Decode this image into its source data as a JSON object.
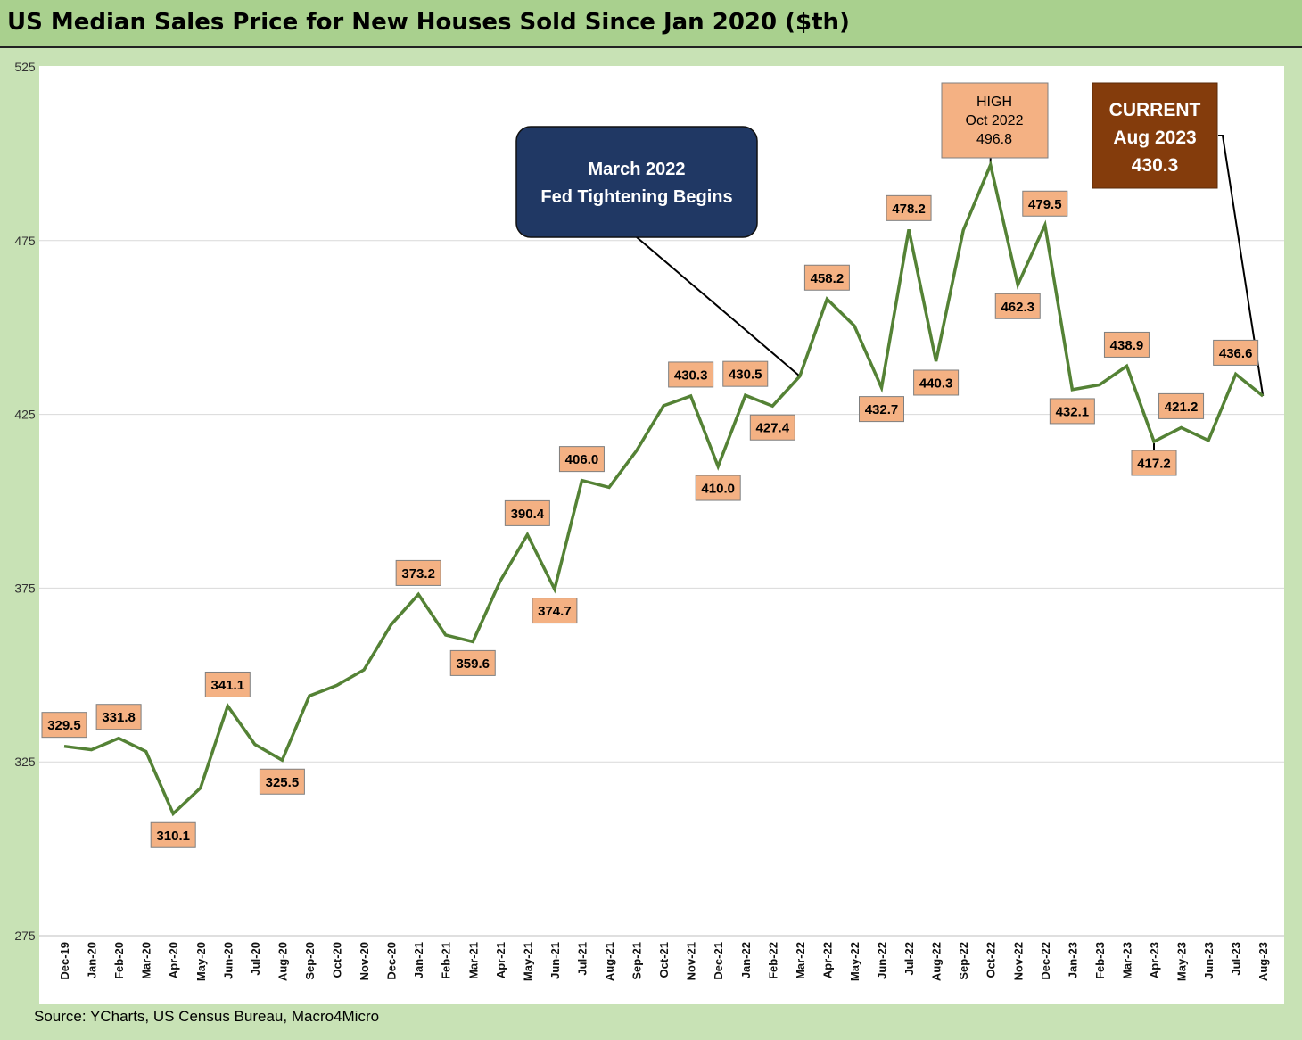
{
  "title": "US Median Sales Price for New Houses Sold Since Jan 2020 ($th)",
  "source": "Source: YCharts, US Census Bureau, Macro4Micro",
  "colors": {
    "line": "#548235",
    "label_fill": "#f4b183",
    "callout_fed": "#203864",
    "callout_current": "#843c0c",
    "frame": "#c8e2b5",
    "title_bar": "#a9d08e"
  },
  "chart_data": {
    "type": "line",
    "title": "US Median Sales Price for New Houses Sold Since Jan 2020 ($th)",
    "xlabel": "",
    "ylabel": "",
    "ylim": [
      275,
      525
    ],
    "yticks": [
      275,
      325,
      375,
      425,
      475,
      525
    ],
    "grid": true,
    "categories": [
      "Dec-19",
      "Jan-20",
      "Feb-20",
      "Mar-20",
      "Apr-20",
      "May-20",
      "Jun-20",
      "Jul-20",
      "Aug-20",
      "Sep-20",
      "Oct-20",
      "Nov-20",
      "Dec-20",
      "Jan-21",
      "Feb-21",
      "Mar-21",
      "Apr-21",
      "May-21",
      "Jun-21",
      "Jul-21",
      "Aug-21",
      "Sep-21",
      "Oct-21",
      "Nov-21",
      "Dec-21",
      "Jan-22",
      "Feb-22",
      "Mar-22",
      "Apr-22",
      "May-22",
      "Jun-22",
      "Jul-22",
      "Aug-22",
      "Sep-22",
      "Oct-22",
      "Nov-22",
      "Dec-22",
      "Jan-23",
      "Feb-23",
      "Mar-23",
      "Apr-23",
      "May-23",
      "Jun-23",
      "Jul-23",
      "Aug-23"
    ],
    "series": [
      {
        "values": [
          329.5,
          328.5,
          331.8,
          328.0,
          310.1,
          317.5,
          341.1,
          330.0,
          325.5,
          344.0,
          347.0,
          351.5,
          364.5,
          373.2,
          361.5,
          359.6,
          377.0,
          390.4,
          374.7,
          406.0,
          404.0,
          414.5,
          427.5,
          430.3,
          410.0,
          430.5,
          427.4,
          436.0,
          458.2,
          450.5,
          432.7,
          478.2,
          440.3,
          478.0,
          496.8,
          462.3,
          479.5,
          432.1,
          433.5,
          438.9,
          417.2,
          421.2,
          417.5,
          436.6,
          430.3
        ]
      }
    ],
    "data_labels": [
      {
        "index": 0,
        "text": "329.5",
        "pos": "above"
      },
      {
        "index": 2,
        "text": "331.8",
        "pos": "above"
      },
      {
        "index": 4,
        "text": "310.1",
        "pos": "below"
      },
      {
        "index": 6,
        "text": "341.1",
        "pos": "above"
      },
      {
        "index": 8,
        "text": "325.5",
        "pos": "below"
      },
      {
        "index": 13,
        "text": "373.2",
        "pos": "above"
      },
      {
        "index": 15,
        "text": "359.6",
        "pos": "below"
      },
      {
        "index": 17,
        "text": "390.4",
        "pos": "above"
      },
      {
        "index": 18,
        "text": "374.7",
        "pos": "below"
      },
      {
        "index": 19,
        "text": "406.0",
        "pos": "above"
      },
      {
        "index": 23,
        "text": "430.3",
        "pos": "above"
      },
      {
        "index": 24,
        "text": "410.0",
        "pos": "below"
      },
      {
        "index": 25,
        "text": "430.5",
        "pos": "above"
      },
      {
        "index": 26,
        "text": "427.4",
        "pos": "below"
      },
      {
        "index": 28,
        "text": "458.2",
        "pos": "above"
      },
      {
        "index": 30,
        "text": "432.7",
        "pos": "below"
      },
      {
        "index": 31,
        "text": "478.2",
        "pos": "above"
      },
      {
        "index": 32,
        "text": "440.3",
        "pos": "below"
      },
      {
        "index": 35,
        "text": "462.3",
        "pos": "below"
      },
      {
        "index": 36,
        "text": "479.5",
        "pos": "above"
      },
      {
        "index": 37,
        "text": "432.1",
        "pos": "below"
      },
      {
        "index": 39,
        "text": "438.9",
        "pos": "above"
      },
      {
        "index": 40,
        "text": "417.2",
        "pos": "below"
      },
      {
        "index": 41,
        "text": "421.2",
        "pos": "above"
      },
      {
        "index": 43,
        "text": "436.6",
        "pos": "above"
      }
    ],
    "annotations": [
      {
        "id": "fed",
        "index": 27,
        "lines": [
          "March 2022",
          "Fed Tightening Begins"
        ]
      },
      {
        "id": "high",
        "index": 34,
        "lines": [
          "HIGH",
          "Oct 2022",
          "496.8"
        ]
      },
      {
        "id": "current",
        "index": 44,
        "lines": [
          "CURRENT",
          "Aug 2023",
          "430.3"
        ]
      }
    ]
  }
}
